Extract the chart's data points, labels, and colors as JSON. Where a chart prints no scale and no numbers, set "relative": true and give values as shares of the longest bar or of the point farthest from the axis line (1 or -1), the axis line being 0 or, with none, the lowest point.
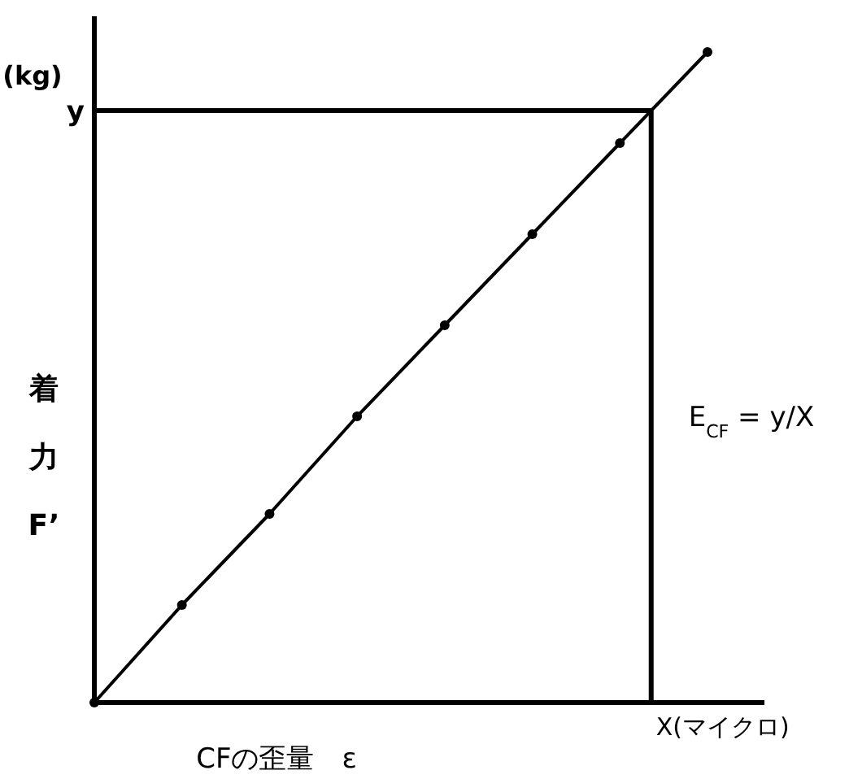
{
  "chart_data": {
    "type": "line",
    "relative": true,
    "xlabel": "CFの歪量　ε",
    "ylabel": "着力F’",
    "marker": "circle",
    "categories": [
      null,
      null,
      null,
      null,
      null,
      null,
      null,
      null
    ],
    "series": [
      {
        "color": "#000000",
        "values": [
          0,
          0.15,
          0.29,
          0.44,
          0.58,
          0.72,
          0.86,
          1
        ]
      }
    ],
    "ref_lines": [
      {
        "axis": "y",
        "value": 0.91,
        "label": "y",
        "color": "#000000"
      }
    ],
    "annotations": [
      "(kg)",
      "E$_{CF}$ = y/X",
      "X(マイクロ)"
    ]
  }
}
